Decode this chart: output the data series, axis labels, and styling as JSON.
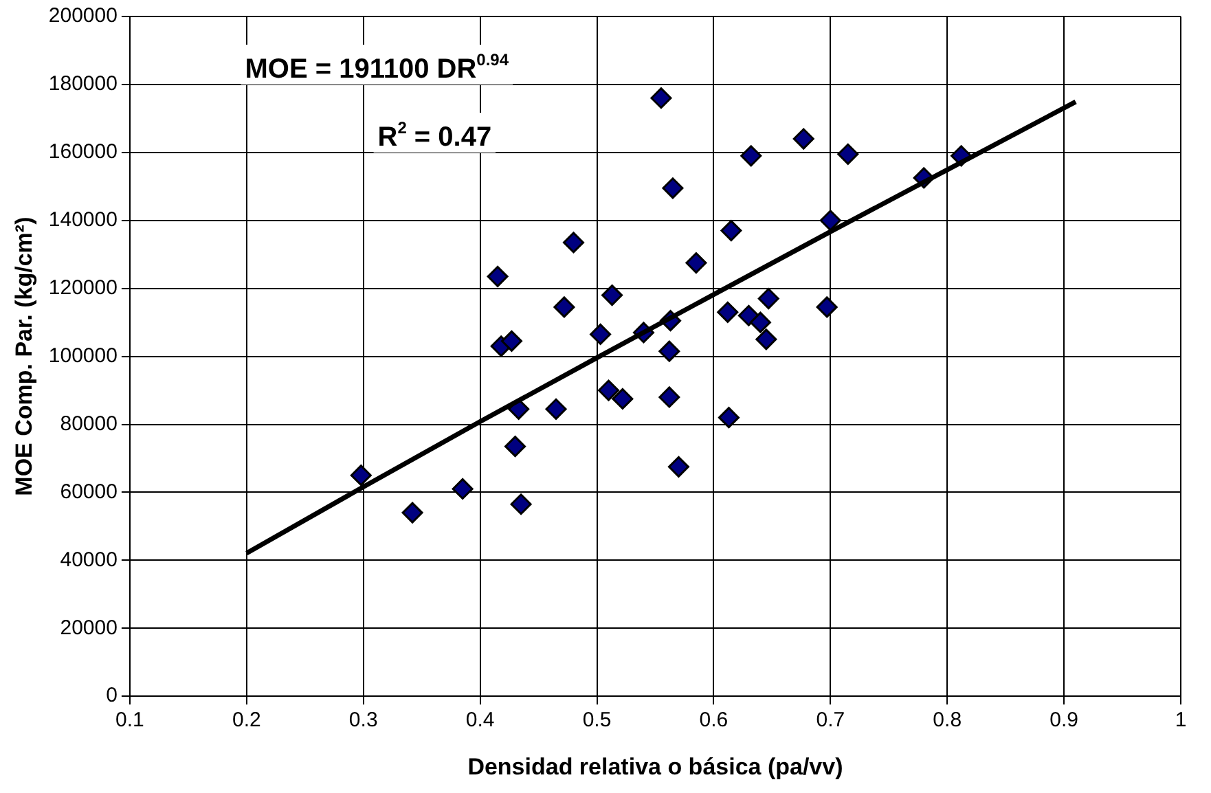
{
  "chart_data": {
    "type": "scatter",
    "xlabel": "Densidad relativa o básica (pa/vv)",
    "ylabel": "MOE Comp. Par. (kg/cm²)",
    "annotations": [
      "MOE = 191100 DR$^{0.94}$",
      "R$^{2}$ = 0.47"
    ],
    "series": [
      {
        "type": "scatter",
        "color": "#000080",
        "marker": "diamond",
        "x": [
          0.298,
          0.342,
          0.385,
          0.415,
          0.418,
          0.427,
          0.43,
          0.433,
          0.435,
          0.465,
          0.472,
          0.48,
          0.503,
          0.51,
          0.513,
          0.522,
          0.54,
          0.555,
          0.562,
          0.562,
          0.563,
          0.565,
          0.57,
          0.585,
          0.612,
          0.613,
          0.615,
          0.63,
          0.632,
          0.64,
          0.645,
          0.647,
          0.677,
          0.697,
          0.7,
          0.715,
          0.78,
          0.812
        ],
        "values": [
          65000,
          54000,
          61000,
          123500,
          103000,
          104500,
          73500,
          84500,
          56500,
          84500,
          114500,
          133500,
          106500,
          90000,
          118000,
          87500,
          107000,
          176000,
          101500,
          88000,
          110500,
          149500,
          67500,
          127500,
          113000,
          82000,
          137000,
          112000,
          159000,
          110000,
          105000,
          117000,
          164000,
          114500,
          140000,
          159500,
          152500,
          159000
        ]
      },
      {
        "type": "line",
        "color": "#000000",
        "marker": "none",
        "line_style": "solid",
        "x": [
          0.2,
          0.3,
          0.4,
          0.5,
          0.6,
          0.7,
          0.8,
          0.91
        ],
        "values": [
          42100,
          61600,
          80800,
          99600,
          118200,
          136700,
          154900,
          174900
        ]
      }
    ],
    "xlim": [
      0.1,
      1
    ],
    "xticks": [
      0.1,
      0.2,
      0.3,
      0.4,
      0.5,
      0.6,
      0.7,
      0.8,
      0.9,
      1
    ],
    "ylim": [
      0,
      200000
    ],
    "yticks": [
      0,
      20000,
      40000,
      60000,
      80000,
      100000,
      120000,
      140000,
      160000,
      180000,
      200000
    ],
    "grid": true,
    "legend": false
  }
}
